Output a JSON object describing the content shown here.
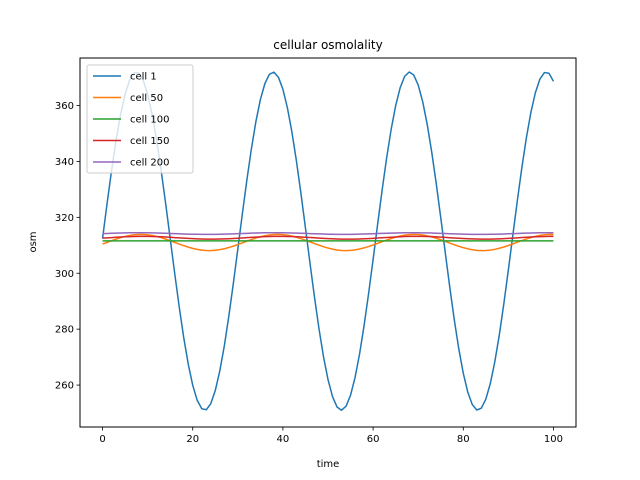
{
  "chart_data": {
    "type": "line",
    "title": "cellular osmolality",
    "xlabel": "time",
    "ylabel": "osm",
    "xlim": [
      -5,
      105
    ],
    "ylim": [
      245,
      377
    ],
    "xticks": [
      0,
      20,
      40,
      60,
      80,
      100
    ],
    "yticks": [
      260,
      280,
      300,
      320,
      340,
      360
    ],
    "grid": false,
    "legend_position": "upper left",
    "series": [
      {
        "name": "cell 1",
        "color": "#1f77b4",
        "kind": "sine",
        "mean": 311.5,
        "amplitude": 60.5,
        "period": 30.3,
        "phase_peak": 7.5
      },
      {
        "name": "cell 50",
        "color": "#ff7f0e",
        "kind": "sine",
        "mean": 311.0,
        "amplitude": 2.9,
        "period": 30.3,
        "phase_peak": 8.5
      },
      {
        "name": "cell 100",
        "color": "#2ca02c",
        "kind": "constant",
        "mean": 311.6
      },
      {
        "name": "cell 150",
        "color": "#d62728",
        "kind": "sine",
        "mean": 312.7,
        "amplitude": 0.5,
        "period": 30.3,
        "phase_peak": 9.0
      },
      {
        "name": "cell 200",
        "color": "#9467bd",
        "kind": "sine",
        "mean": 314.2,
        "amplitude": 0.3,
        "period": 30.3,
        "phase_peak": 8.0
      }
    ]
  }
}
